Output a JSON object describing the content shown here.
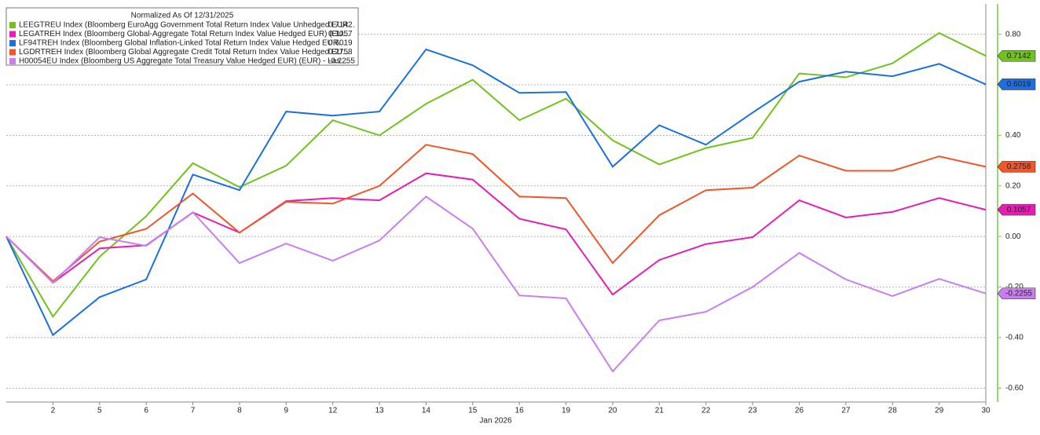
{
  "chart_data": {
    "type": "line",
    "legend_title": "Normalized As Of 12/31/2025",
    "xlabel": "Jan 2026",
    "categories": [
      null,
      "2",
      "5",
      "6",
      "7",
      "8",
      "9",
      "12",
      "13",
      "14",
      "15",
      "16",
      "19",
      "20",
      "21",
      "22",
      "23",
      "26",
      "27",
      "28",
      "29",
      "30"
    ],
    "ylim": [
      -0.655,
      0.92
    ],
    "yticks": [
      {
        "value": 0.8,
        "label": "0.80"
      },
      {
        "value": 0.6,
        "label": "0.60"
      },
      {
        "value": 0.4,
        "label": "0.40"
      },
      {
        "value": 0.2,
        "label": "0.20"
      },
      {
        "value": 0,
        "label": "0.00"
      },
      {
        "value": -0.2,
        "label": "-0.20"
      },
      {
        "value": -0.4,
        "label": "-0.40"
      },
      {
        "value": -0.6,
        "label": "-0.60"
      }
    ],
    "grid": true,
    "legend": "upper left",
    "axis_color": "#7ac943",
    "series": [
      {
        "name": "LEEGTREU Index (Bloomberg EuroAgg Government Total Return Index Value Unhedged EUR...",
        "color": "#72c21e",
        "values": [
          0,
          -0.317,
          -0.08,
          0.08,
          0.29,
          0.195,
          0.28,
          0.46,
          0.4,
          0.525,
          0.62,
          0.46,
          0.545,
          0.38,
          0.285,
          0.35,
          0.39,
          0.645,
          0.63,
          0.685,
          0.805,
          0.7142
        ]
      },
      {
        "name": "LEGATREH Index (Bloomberg Global-Aggregate Total Return Index Value Hedged EUR) (EU...",
        "color": "#e81cb4",
        "values": [
          0,
          -0.183,
          -0.047,
          -0.035,
          0.095,
          0.015,
          0.14,
          0.152,
          0.143,
          0.25,
          0.225,
          0.07,
          0.028,
          -0.23,
          -0.093,
          -0.03,
          -0.003,
          0.143,
          0.075,
          0.097,
          0.152,
          0.1057
        ]
      },
      {
        "name": "LF94TREH Index (Bloomberg Global Inflation-Linked Total Return Index Value Hedged EUR...",
        "color": "#1b6fe0",
        "values": [
          0,
          -0.39,
          -0.24,
          -0.17,
          0.245,
          0.183,
          0.494,
          0.478,
          0.494,
          0.74,
          0.677,
          0.568,
          0.571,
          0.276,
          0.44,
          0.363,
          0.49,
          0.612,
          0.652,
          0.634,
          0.683,
          0.6019
        ]
      },
      {
        "name": "LGDRTREH Index (Bloomberg Global Aggregate Credit Total Return Index Value Hedged EU...",
        "color": "#f2552a",
        "values": [
          0,
          -0.177,
          -0.02,
          0.03,
          0.17,
          0.015,
          0.137,
          0.13,
          0.2,
          0.363,
          0.326,
          0.158,
          0.152,
          -0.105,
          0.084,
          0.183,
          0.193,
          0.32,
          0.26,
          0.26,
          0.317,
          0.2758
        ]
      },
      {
        "name": "H00054EU Index (Bloomberg US Aggregate Total Treasury Value Hedged EUR) (EUR) - Las...",
        "color": "#c87ef0",
        "values": [
          0,
          -0.183,
          -0.003,
          -0.037,
          0.096,
          -0.105,
          -0.028,
          -0.096,
          -0.016,
          0.158,
          0.031,
          -0.233,
          -0.245,
          -0.534,
          -0.332,
          -0.298,
          -0.2,
          -0.065,
          -0.17,
          -0.236,
          -0.168,
          -0.2255
        ]
      }
    ]
  }
}
